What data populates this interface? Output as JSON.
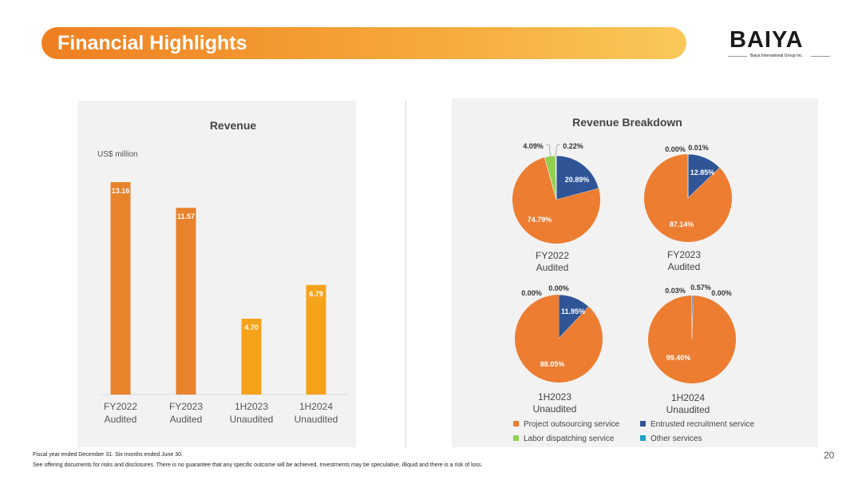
{
  "header": {
    "title": "Financial Highlights",
    "logo_word": "BAIYA",
    "logo_sub": "Baiya International Group Inc."
  },
  "colors": {
    "project": "#ed7d31",
    "entrusted": "#2f5597",
    "labor": "#92d050",
    "other": "#1ba1c4",
    "bar_audited": "#e8822b",
    "bar_unaudited": "#f7a21b"
  },
  "chart_data": [
    {
      "type": "bar",
      "title": "Revenue",
      "ylabel": "US$ million",
      "ylim": [
        0,
        14.5
      ],
      "categories": [
        [
          "FY2022",
          "Audited"
        ],
        [
          "FY2023",
          "Audited"
        ],
        [
          "1H2023",
          "Unaudited"
        ],
        [
          "1H2024",
          "Unaudited"
        ]
      ],
      "values": [
        13.16,
        11.57,
        4.7,
        6.79
      ],
      "labels": [
        "13.16",
        "11.57",
        "4.70",
        "6.79"
      ],
      "grid": false
    },
    {
      "type": "pie",
      "title": "Revenue Breakdown",
      "legend": [
        {
          "key": "project",
          "label": "Project outsourcing service"
        },
        {
          "key": "entrusted",
          "label": "Entrusted recruitment service"
        },
        {
          "key": "labor",
          "label": "Labor dispatching service"
        },
        {
          "key": "other",
          "label": "Other services"
        }
      ],
      "pies": [
        {
          "caption": [
            "FY2022",
            "Audited"
          ],
          "slices": [
            {
              "key": "project",
              "value": 74.79,
              "label": "74.79%"
            },
            {
              "key": "entrusted",
              "value": 20.89,
              "label": "20.89%"
            },
            {
              "key": "labor",
              "value": 4.09,
              "label": "4.09%"
            },
            {
              "key": "other",
              "value": 0.22,
              "label": "0.22%"
            }
          ]
        },
        {
          "caption": [
            "FY2023",
            "Audited"
          ],
          "slices": [
            {
              "key": "project",
              "value": 87.14,
              "label": "87.14%"
            },
            {
              "key": "entrusted",
              "value": 12.85,
              "label": "12.85%"
            },
            {
              "key": "labor",
              "value": 0.0,
              "label": "0.00%"
            },
            {
              "key": "other",
              "value": 0.01,
              "label": "0.01%"
            }
          ]
        },
        {
          "caption": [
            "1H2023",
            "Unaudited"
          ],
          "slices": [
            {
              "key": "project",
              "value": 88.05,
              "label": "88.05%"
            },
            {
              "key": "entrusted",
              "value": 11.95,
              "label": "11.95%"
            },
            {
              "key": "labor",
              "value": 0.0,
              "label": "0.00%"
            },
            {
              "key": "other",
              "value": 0.0,
              "label": "0.00%"
            }
          ]
        },
        {
          "caption": [
            "1H2024",
            "Unaudited"
          ],
          "slices": [
            {
              "key": "project",
              "value": 99.4,
              "label": "99.40%"
            },
            {
              "key": "entrusted",
              "value": 0.57,
              "label": "0.57%"
            },
            {
              "key": "labor",
              "value": 0.03,
              "label": "0.03%"
            },
            {
              "key": "other",
              "value": 0.0,
              "label": "0.00%"
            }
          ]
        }
      ]
    }
  ],
  "footer": {
    "note1": "Fiscal year ended December 31. Six months ended June 30.",
    "note2": "See offering documents for risks and disclosures. There is no guarantee that any specific outcome will be achieved. Investments may be speculative, illiquid and there is a risk of loss.",
    "page_number": "20"
  }
}
